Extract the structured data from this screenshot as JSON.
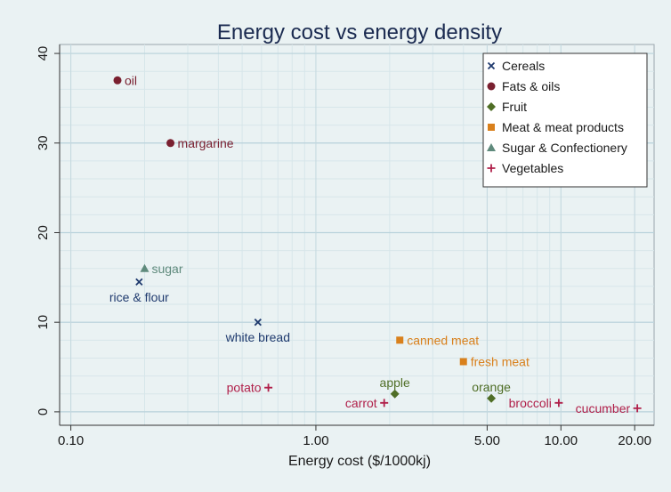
{
  "chart_data": {
    "type": "scatter",
    "title": "Energy cost vs energy density",
    "xlabel": "Energy cost ($/1000kj)",
    "ylabel": "",
    "x_scale": "log",
    "xlim": [
      0.09,
      24
    ],
    "ylim": [
      -1.5,
      41
    ],
    "x_ticks": [
      0.1,
      1.0,
      5.0,
      10.0,
      20.0
    ],
    "x_tick_labels": [
      "0.10",
      "1.00",
      "5.00",
      "10.00",
      "20.00"
    ],
    "y_ticks": [
      0,
      10,
      20,
      30,
      40
    ],
    "y_tick_labels": [
      "0",
      "10",
      "20",
      "30",
      "40"
    ],
    "grid": true,
    "legend_position": "top-right",
    "series": [
      {
        "name": "Cereals",
        "marker": "x",
        "color": "#1f3a6e",
        "points": [
          {
            "label": "rice & flour",
            "x": 0.19,
            "y": 14.5,
            "label_pos": "below"
          },
          {
            "label": "white bread",
            "x": 0.58,
            "y": 10.0,
            "label_pos": "below"
          }
        ]
      },
      {
        "name": "Fats & oils",
        "marker": "circle",
        "color": "#7a2030",
        "points": [
          {
            "label": "oil",
            "x": 0.155,
            "y": 37.0,
            "label_pos": "right"
          },
          {
            "label": "margarine",
            "x": 0.255,
            "y": 30.0,
            "label_pos": "right"
          }
        ]
      },
      {
        "name": "Fruit",
        "marker": "diamond",
        "color": "#4f6e26",
        "points": [
          {
            "label": "apple",
            "x": 2.1,
            "y": 2.0,
            "label_pos": "above"
          },
          {
            "label": "orange",
            "x": 5.2,
            "y": 1.5,
            "label_pos": "above"
          }
        ]
      },
      {
        "name": "Meat & meat products",
        "marker": "square",
        "color": "#d9801c",
        "points": [
          {
            "label": "canned meat",
            "x": 2.2,
            "y": 8.0,
            "label_pos": "right"
          },
          {
            "label": "fresh meat",
            "x": 4.0,
            "y": 5.6,
            "label_pos": "right"
          }
        ]
      },
      {
        "name": "Sugar & Confectionery",
        "marker": "triangle",
        "color": "#5f8a7c",
        "points": [
          {
            "label": "sugar",
            "x": 0.2,
            "y": 16.0,
            "label_pos": "right"
          }
        ]
      },
      {
        "name": "Vegetables",
        "marker": "plus",
        "color": "#b0204a",
        "points": [
          {
            "label": "potato",
            "x": 0.64,
            "y": 2.7,
            "label_pos": "left"
          },
          {
            "label": "carrot",
            "x": 1.9,
            "y": 1.0,
            "label_pos": "left"
          },
          {
            "label": "broccoli",
            "x": 9.8,
            "y": 1.0,
            "label_pos": "left"
          },
          {
            "label": "cucumber",
            "x": 20.5,
            "y": 0.4,
            "label_pos": "left"
          }
        ]
      }
    ]
  }
}
